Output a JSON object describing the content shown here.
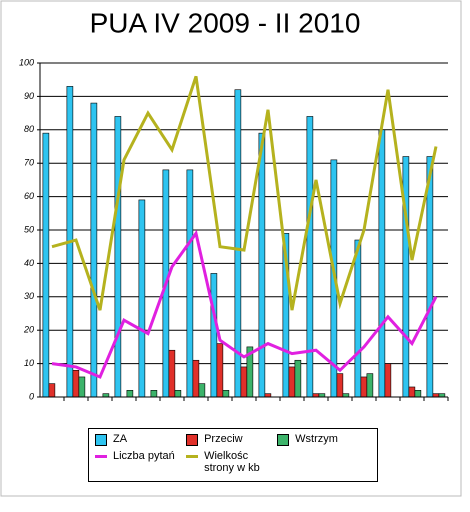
{
  "chart_data": {
    "type": "bar",
    "title": "PUA IV 2009 - II 2010",
    "categories": [
      null,
      null,
      null,
      null,
      null,
      null,
      null,
      null,
      null,
      null,
      null,
      null,
      null,
      null,
      null,
      null,
      null
    ],
    "series": [
      {
        "name": "ZA",
        "type": "bar",
        "color": "#2ec4f0",
        "values": [
          79,
          93,
          88,
          84,
          59,
          68,
          68,
          37,
          92,
          79,
          49,
          84,
          71,
          47,
          80,
          72,
          72
        ]
      },
      {
        "name": "Przeciw",
        "type": "bar",
        "color": "#e0302a",
        "values": [
          4,
          8,
          0,
          0,
          0,
          14,
          11,
          16,
          9,
          1,
          9,
          1,
          7,
          6,
          10,
          3,
          1
        ]
      },
      {
        "name": "Wstrzym",
        "type": "bar",
        "color": "#3cb36a",
        "values": [
          0,
          6,
          1,
          2,
          2,
          2,
          4,
          2,
          15,
          0,
          11,
          1,
          1,
          7,
          0,
          2,
          1
        ]
      },
      {
        "name": "Liczba pytań",
        "type": "line",
        "color": "#e020e0",
        "values": [
          10,
          9,
          6,
          23,
          19,
          39,
          49,
          17,
          12,
          16,
          13,
          14,
          8,
          15,
          24,
          16,
          30
        ]
      },
      {
        "name": "Wielkośc strony w kb",
        "type": "line",
        "color": "#b5b21e",
        "values": [
          45,
          47,
          26,
          71,
          85,
          74,
          96,
          45,
          44,
          86,
          26,
          65,
          28,
          50,
          92,
          41,
          75
        ]
      }
    ],
    "ylim": [
      0,
      100
    ],
    "yticks": [
      0,
      10,
      20,
      30,
      40,
      50,
      60,
      70,
      80,
      90,
      100
    ],
    "grid": true,
    "legend": "bottom"
  }
}
